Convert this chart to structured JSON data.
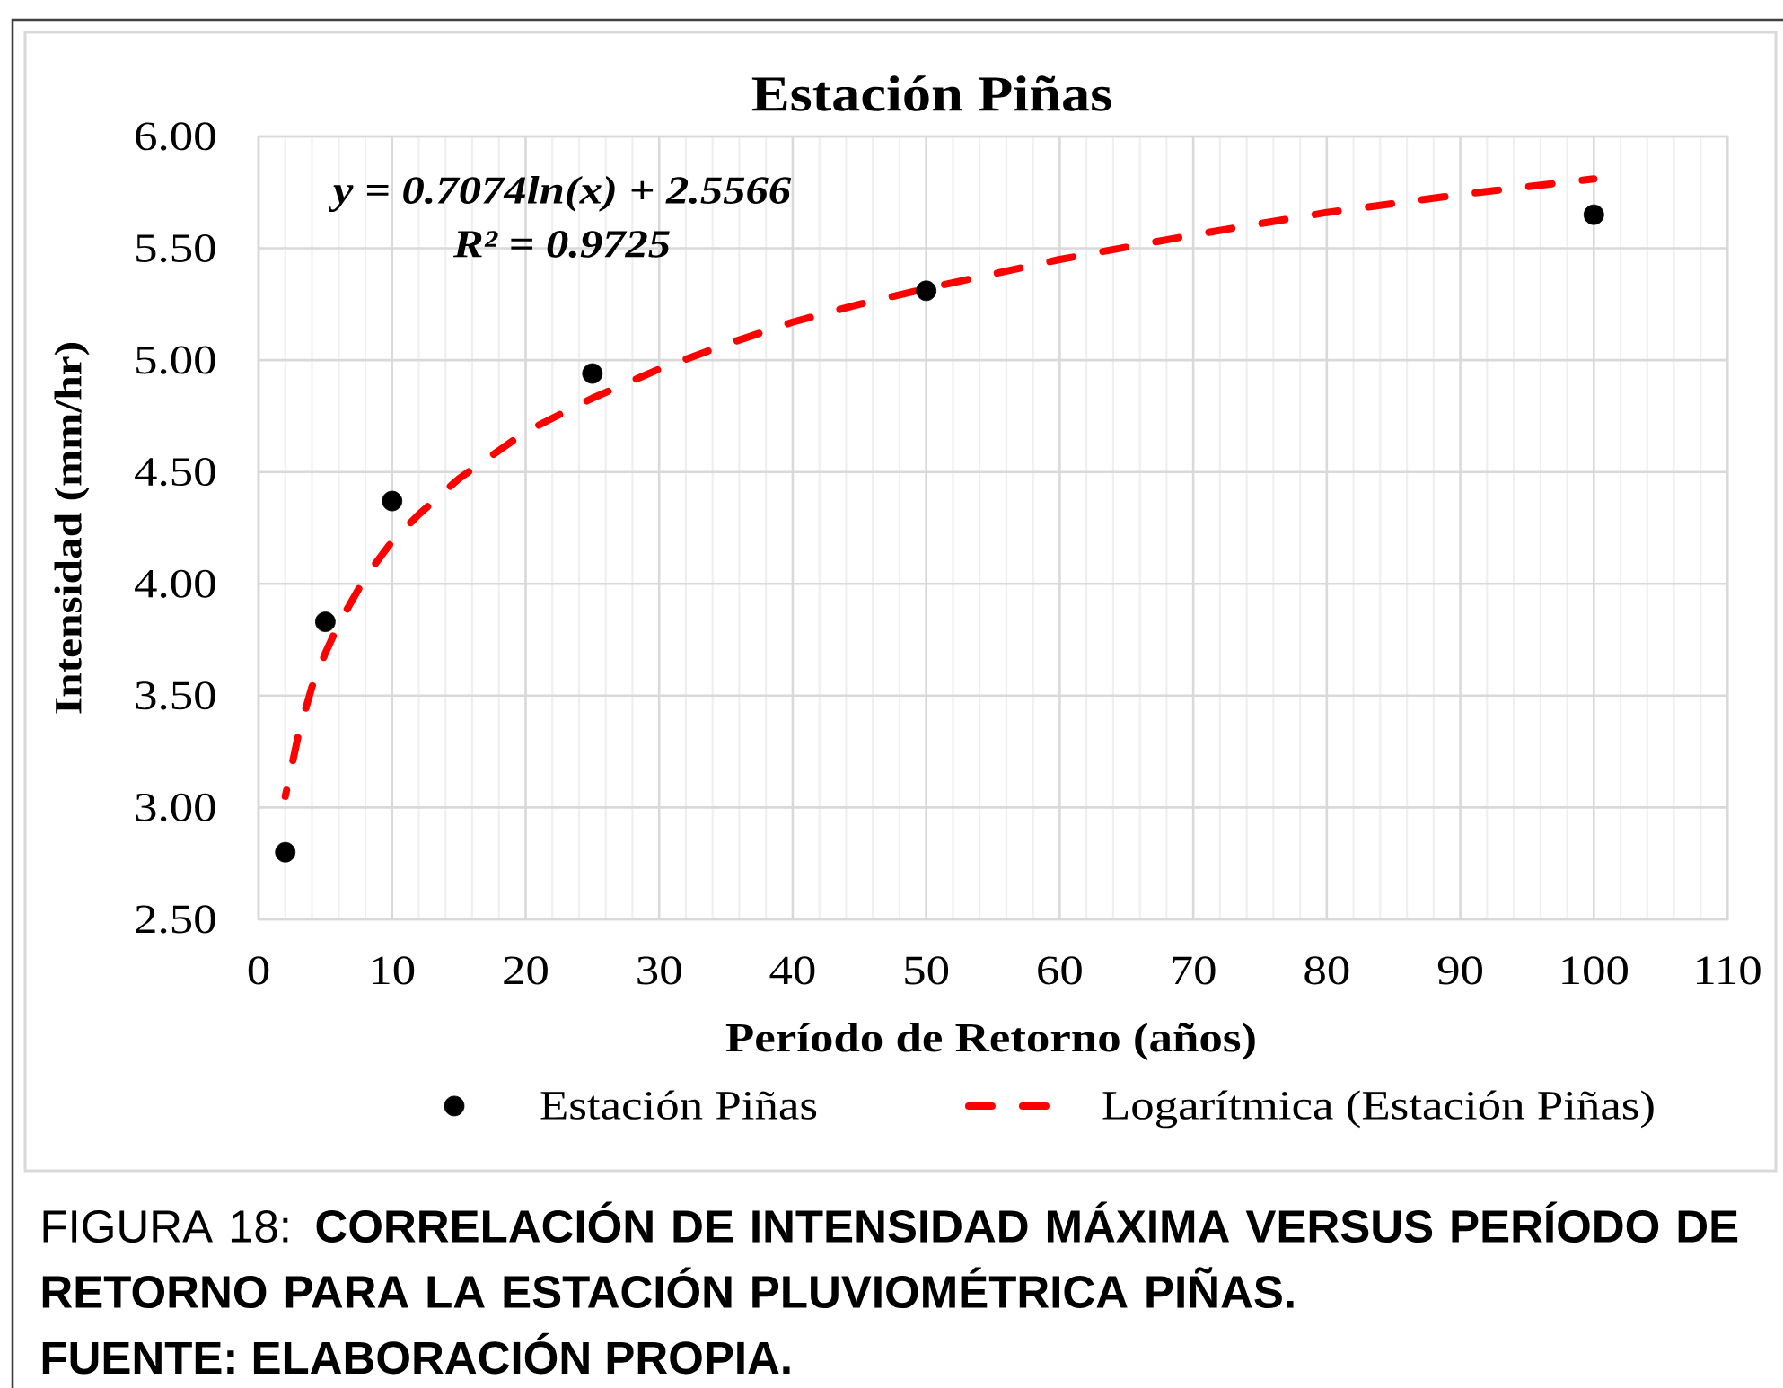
{
  "chart_data": {
    "type": "scatter",
    "title": "Estación Piñas",
    "xlabel": "Período de Retorno (años)",
    "ylabel": "Intensidad (mm/hr)",
    "x": [
      2,
      5,
      10,
      25,
      50,
      100
    ],
    "series": [
      {
        "name": "Estación Piñas",
        "color": "#000000",
        "values": [
          2.8,
          3.83,
          4.37,
          4.94,
          5.31,
          5.65
        ]
      },
      {
        "name": "Logarítmica (Estación Piñas)",
        "type": "line",
        "color": "#ff0000",
        "marker": "none",
        "line_style": "dashed",
        "x": [
          2,
          3,
          4,
          5,
          6,
          8,
          10,
          12,
          15,
          20,
          25,
          30,
          35,
          40,
          45,
          50,
          60,
          70,
          80,
          90,
          100
        ],
        "values": [
          3.05,
          3.33,
          3.54,
          3.69,
          3.82,
          4.03,
          4.19,
          4.31,
          4.47,
          4.68,
          4.83,
          4.96,
          5.07,
          5.17,
          5.25,
          5.32,
          5.45,
          5.56,
          5.66,
          5.74,
          5.81
        ]
      }
    ],
    "xlim": [
      0,
      110
    ],
    "ylim": [
      2.5,
      6.0
    ],
    "xticks": [
      0,
      10,
      20,
      30,
      40,
      50,
      60,
      70,
      80,
      90,
      100,
      110
    ],
    "yticks": [
      {
        "value": 2.5,
        "label": "2.50"
      },
      {
        "value": 3.0,
        "label": "3.00"
      },
      {
        "value": 3.5,
        "label": "3.50"
      },
      {
        "value": 4.0,
        "label": "4.00"
      },
      {
        "value": 4.5,
        "label": "4.50"
      },
      {
        "value": 5.0,
        "label": "5.00"
      },
      {
        "value": 5.5,
        "label": "5.50"
      },
      {
        "value": 6.0,
        "label": "6.00"
      }
    ],
    "grid": true,
    "legend": "bottom",
    "marker": "circle",
    "annotations": [
      "y = 0.7074ln(x) + 2.5566",
      "R² = 0.9725",
      "FIGURA 18: **CORRELACIÓN DE INTENSIDAD MÁXIMA VERSUS PERÍODO DE RETORNO PARA LA ESTACIÓN PLUVIOMÉTRICA PIÑAS.**",
      "FUENTE: ELABORACIÓN PROPIA."
    ]
  }
}
